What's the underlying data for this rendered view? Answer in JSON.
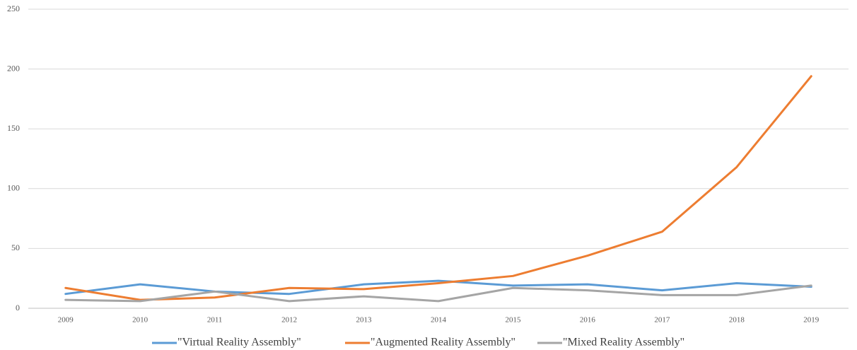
{
  "chart_data": {
    "type": "line",
    "categories": [
      "2009",
      "2010",
      "2011",
      "2012",
      "2013",
      "2014",
      "2015",
      "2016",
      "2017",
      "2018",
      "2019"
    ],
    "series": [
      {
        "name": "\"Virtual Reality Assembly\"",
        "color": "#5b9bd5",
        "values": [
          12,
          20,
          14,
          12,
          20,
          23,
          19,
          20,
          15,
          21,
          18
        ]
      },
      {
        "name": "\"Augmented Reality Assembly\"",
        "color": "#ed7d31",
        "values": [
          17,
          7,
          9,
          17,
          16,
          21,
          27,
          44,
          64,
          118,
          194
        ]
      },
      {
        "name": "\"Mixed Reality Assembly\"",
        "color": "#a5a5a5",
        "values": [
          7,
          6,
          14,
          6,
          10,
          6,
          17,
          15,
          11,
          11,
          19
        ]
      }
    ],
    "ylim": [
      0,
      250
    ],
    "yticks": [
      0,
      50,
      100,
      150,
      200,
      250
    ],
    "grid": true,
    "legend": "bottom"
  }
}
